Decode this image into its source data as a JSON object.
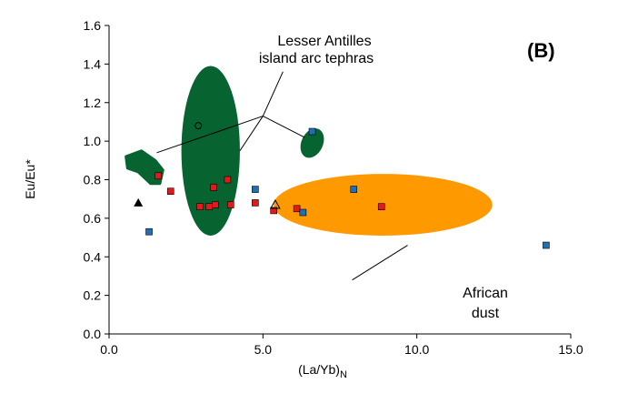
{
  "chart_data": {
    "type": "scatter",
    "panel_label": "(B)",
    "xlabel": {
      "base": "(La/Yb)",
      "sub": "N"
    },
    "ylabel": "Eu/Eu*",
    "xlim": [
      0,
      15
    ],
    "ylim": [
      0,
      1.6
    ],
    "x_ticks": [
      0,
      5,
      10,
      15
    ],
    "x_tick_labels": [
      "0.0",
      "5.0",
      "10.0",
      "15.0"
    ],
    "y_ticks": [
      0,
      0.2,
      0.4,
      0.6,
      0.8,
      1.0,
      1.2,
      1.4,
      1.6
    ],
    "y_tick_labels": [
      "0.0",
      "0.2",
      "0.4",
      "0.6",
      "0.8",
      "1.0",
      "1.2",
      "1.4",
      "1.6"
    ],
    "grid": false,
    "legend": "none",
    "colors": {
      "red": "#e31a1c",
      "blue": "#1f6fb4",
      "arc_field": "#07632f",
      "dust_field": "#ff9900"
    },
    "series": [
      {
        "marker": "square",
        "color": "#e31a1c",
        "points": [
          [
            1.6,
            0.82
          ],
          [
            2.0,
            0.74
          ],
          [
            2.95,
            0.66
          ],
          [
            3.25,
            0.66
          ],
          [
            3.4,
            0.76
          ],
          [
            3.45,
            0.67
          ],
          [
            3.85,
            0.8
          ],
          [
            3.95,
            0.67
          ],
          [
            4.75,
            0.68
          ],
          [
            5.35,
            0.64
          ],
          [
            6.1,
            0.65
          ],
          [
            8.85,
            0.66
          ]
        ]
      },
      {
        "marker": "square",
        "color": "#1f6fb4",
        "points": [
          [
            1.3,
            0.53
          ],
          [
            4.75,
            0.75
          ],
          [
            6.3,
            0.63
          ],
          [
            6.6,
            1.05
          ],
          [
            7.95,
            0.75
          ],
          [
            14.2,
            0.46
          ]
        ]
      },
      {
        "marker": "triangle-filled",
        "color": "#000000",
        "points": [
          [
            0.95,
            0.68
          ]
        ]
      },
      {
        "marker": "triangle-open",
        "color": "#000000",
        "points": [
          [
            5.4,
            0.67
          ]
        ]
      },
      {
        "marker": "circle-open",
        "color": "#000000",
        "points": [
          [
            2.9,
            1.08
          ]
        ]
      }
    ],
    "fields": [
      {
        "label": "Lesser Antilles island arc tephras",
        "shape": "ellipse",
        "cx": 3.3,
        "cy": 0.95,
        "rx": 0.95,
        "ry": 0.44
      },
      {
        "label": "Lesser Antilles island arc tephras",
        "shape": "ellipse",
        "cx": 6.6,
        "cy": 0.99,
        "rx": 0.35,
        "ry": 0.08,
        "rotate": 25
      },
      {
        "label": "Lesser Antilles island arc tephras",
        "shape": "blob",
        "points": [
          [
            0.55,
            0.92
          ],
          [
            1.05,
            0.95
          ],
          [
            1.5,
            0.9
          ],
          [
            1.75,
            0.85
          ],
          [
            1.65,
            0.78
          ],
          [
            1.35,
            0.78
          ],
          [
            0.95,
            0.84
          ],
          [
            0.6,
            0.86
          ]
        ]
      },
      {
        "label": "African dust",
        "shape": "ellipse",
        "cx": 8.9,
        "cy": 0.67,
        "rx": 3.55,
        "ry": 0.16
      }
    ],
    "annotations": [
      {
        "lines": [
          "Lesser Antilles",
          "island arc tephras"
        ]
      },
      {
        "lines": [
          "African",
          "dust"
        ]
      }
    ]
  }
}
